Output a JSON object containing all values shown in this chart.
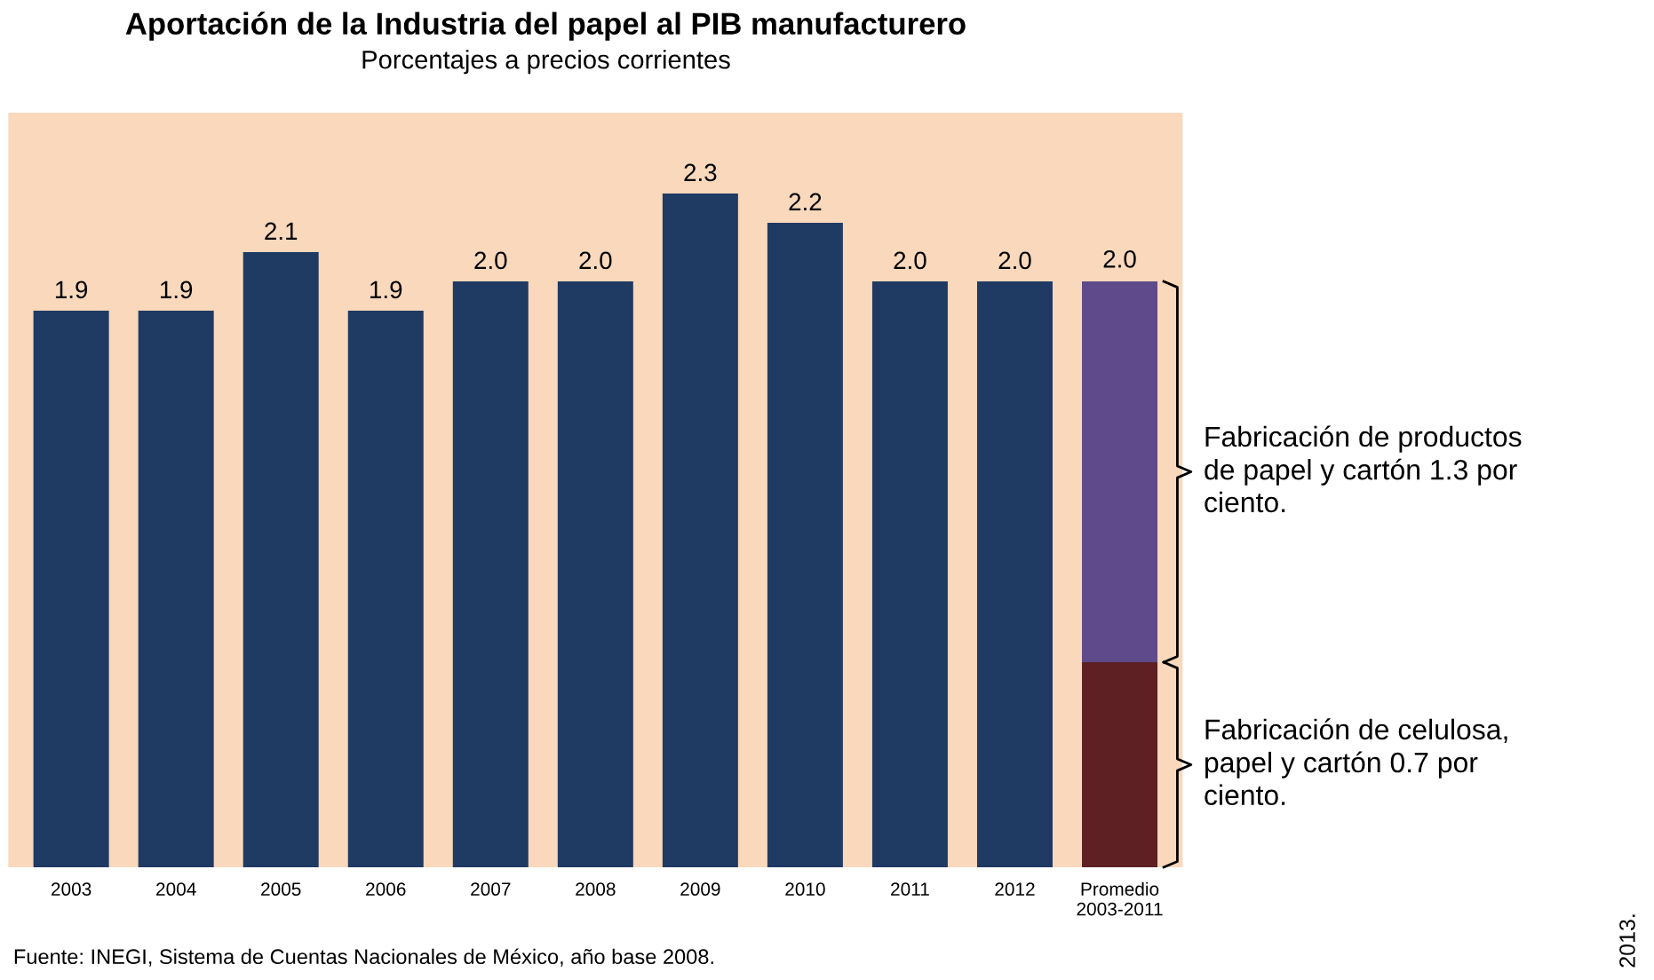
{
  "chart_data": {
    "type": "bar",
    "title": "Aportación de la Industria del papel al PIB manufacturero",
    "subtitle": "Porcentajes a precios corrientes",
    "categories": [
      "2003",
      "2004",
      "2005",
      "2006",
      "2007",
      "2008",
      "2009",
      "2010",
      "2011",
      "2012",
      "Promedio\n2003-2011"
    ],
    "stacked": true,
    "series": [
      {
        "color": "#1f3a63",
        "values": [
          1.9,
          1.9,
          2.1,
          1.9,
          2.0,
          2.0,
          2.3,
          2.2,
          2.0,
          2.0,
          null
        ],
        "value_labels": [
          "1.9",
          "1.9",
          "2.1",
          "1.9",
          "2.0",
          "2.0",
          "2.3",
          "2.2",
          "2.0",
          "2.0",
          null
        ]
      },
      {
        "color": "#5e2023",
        "values": [
          null,
          null,
          null,
          null,
          null,
          null,
          null,
          null,
          null,
          null,
          0.7
        ]
      },
      {
        "color": "#5f4b8b",
        "values": [
          null,
          null,
          null,
          null,
          null,
          null,
          null,
          null,
          null,
          null,
          1.3
        ]
      }
    ],
    "totals": [
      null,
      null,
      null,
      null,
      null,
      null,
      null,
      null,
      null,
      null,
      "2.0"
    ],
    "annotations": [
      "Fabricación de productos\nde papel y cartón 1.3 por\nciento.",
      "Fabricación de celulosa,\npapel y cartón 0.7 por\nciento.",
      "Fuente: INEGI, Sistema de Cuentas Nacionales de México, año base 2008.",
      "2013."
    ],
    "grid": false
  }
}
